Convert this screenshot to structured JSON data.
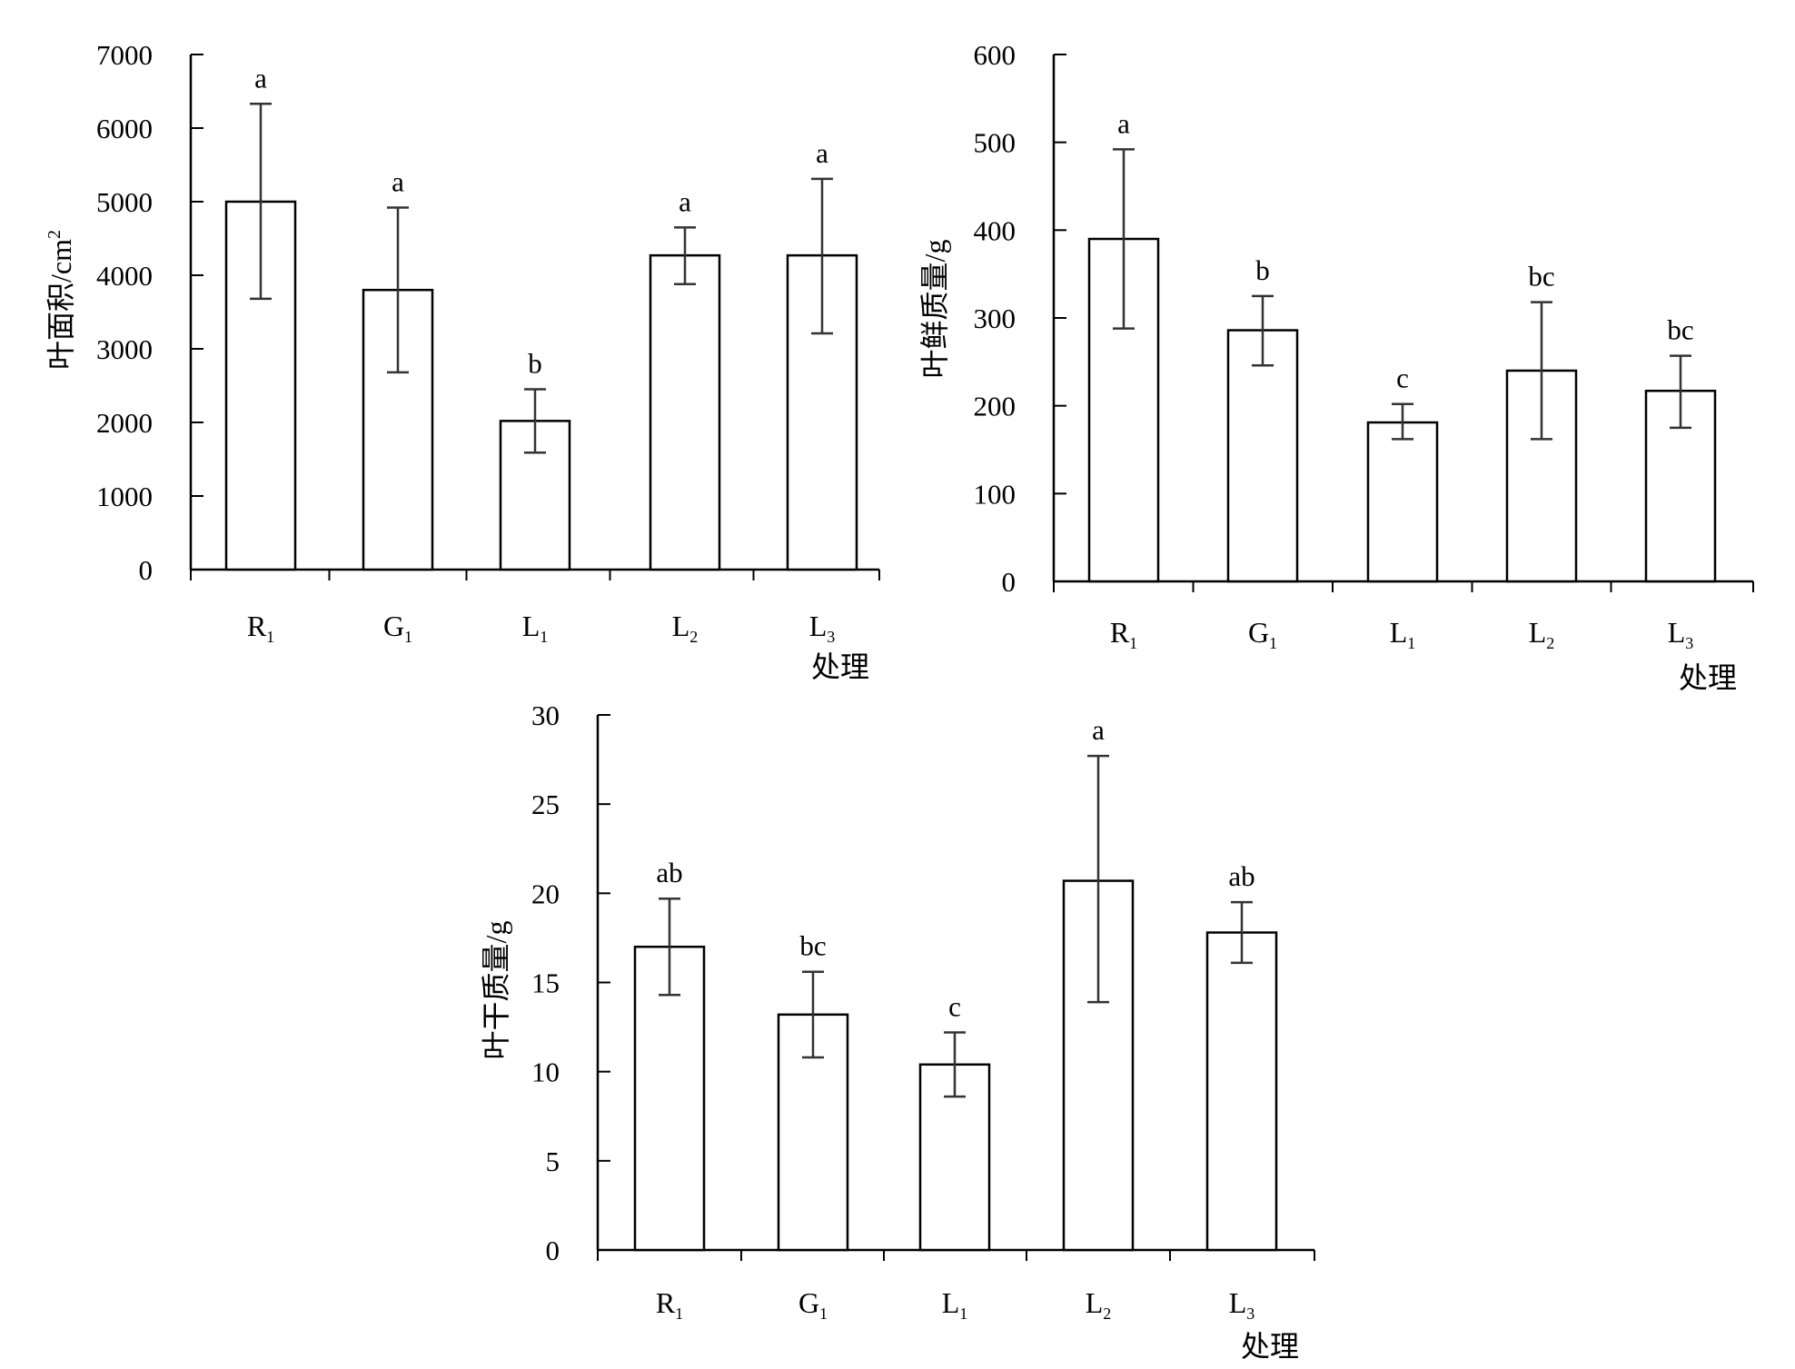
{
  "chart_data": [
    {
      "type": "bar",
      "title": "",
      "xlabel": "处理",
      "ylabel": "叶面积/cm²",
      "ylabel_main": "叶面积/cm",
      "ylabel_sup": "2",
      "ylim": [
        0,
        7000
      ],
      "yticks": [
        0,
        1000,
        2000,
        3000,
        4000,
        5000,
        6000,
        7000
      ],
      "categories": [
        "R1",
        "G1",
        "L1",
        "L2",
        "L3"
      ],
      "category_labels": [
        {
          "main": "R",
          "sub": "1"
        },
        {
          "main": "G",
          "sub": "1"
        },
        {
          "main": "L",
          "sub": "1"
        },
        {
          "main": "L",
          "sub": "2"
        },
        {
          "main": "L",
          "sub": "3"
        }
      ],
      "values": [
        5000,
        3800,
        2020,
        4270,
        4270
      ],
      "error_low": [
        3680,
        2680,
        1590,
        3880,
        3210
      ],
      "error_high": [
        6330,
        4920,
        2450,
        4650,
        5310
      ],
      "significance": [
        "a",
        "a",
        "b",
        "a",
        "a"
      ],
      "grid": false,
      "legend": "none"
    },
    {
      "type": "bar",
      "title": "",
      "xlabel": "处理",
      "ylabel": "叶鲜质量/g",
      "ylim": [
        0,
        600
      ],
      "yticks": [
        0,
        100,
        200,
        300,
        400,
        500,
        600
      ],
      "categories": [
        "R1",
        "G1",
        "L1",
        "L2",
        "L3"
      ],
      "category_labels": [
        {
          "main": "R",
          "sub": "1"
        },
        {
          "main": "G",
          "sub": "1"
        },
        {
          "main": "L",
          "sub": "1"
        },
        {
          "main": "L",
          "sub": "2"
        },
        {
          "main": "L",
          "sub": "3"
        }
      ],
      "values": [
        390,
        286,
        181,
        240,
        217
      ],
      "error_low": [
        288,
        246,
        162,
        162,
        175
      ],
      "error_high": [
        492,
        325,
        202,
        318,
        257
      ],
      "significance": [
        "a",
        "b",
        "c",
        "bc",
        "bc"
      ],
      "grid": false,
      "legend": "none"
    },
    {
      "type": "bar",
      "title": "",
      "xlabel": "处理",
      "ylabel": "叶干质量/g",
      "ylim": [
        0,
        30
      ],
      "yticks": [
        0,
        5,
        10,
        15,
        20,
        25,
        30
      ],
      "categories": [
        "R1",
        "G1",
        "L1",
        "L2",
        "L3"
      ],
      "category_labels": [
        {
          "main": "R",
          "sub": "1"
        },
        {
          "main": "G",
          "sub": "1"
        },
        {
          "main": "L",
          "sub": "1"
        },
        {
          "main": "L",
          "sub": "2"
        },
        {
          "main": "L",
          "sub": "3"
        }
      ],
      "values": [
        17.0,
        13.2,
        10.4,
        20.7,
        17.8
      ],
      "error_low": [
        14.3,
        10.8,
        8.6,
        13.9,
        16.1
      ],
      "error_high": [
        19.7,
        15.6,
        12.2,
        27.7,
        19.5
      ],
      "significance": [
        "ab",
        "bc",
        "c",
        "a",
        "ab"
      ],
      "grid": false,
      "legend": "none"
    }
  ]
}
